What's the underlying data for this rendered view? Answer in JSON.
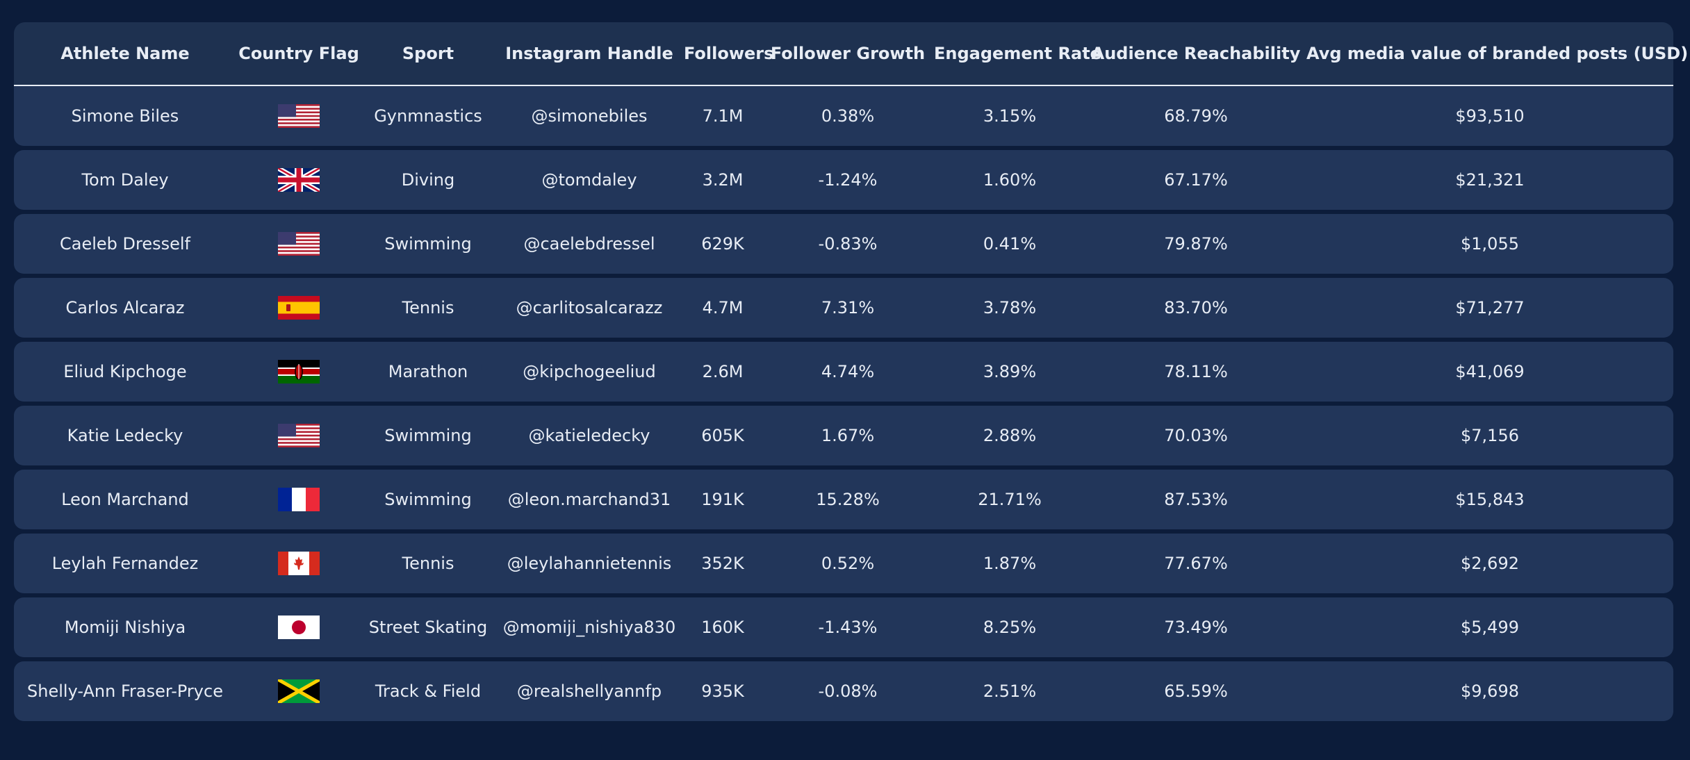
{
  "chart_data": {
    "type": "table",
    "columns": [
      "Athlete Name",
      "Country Flag",
      "Sport",
      "Instagram Handle",
      "Followers",
      "Follower Growth",
      "Engagement Rate",
      "Audience Reachability",
      "Avg media value of branded posts (USD)"
    ],
    "rows": [
      {
        "name": "Simone Biles",
        "flag": "us-flag-icon",
        "sport": "Gynmnastics",
        "handle": "@simonebiles",
        "followers": "7.1M",
        "growth": "0.38%",
        "engagement": "3.15%",
        "reach": "68.79%",
        "value": "$93,510"
      },
      {
        "name": "Tom Daley",
        "flag": "uk-flag-icon",
        "sport": "Diving",
        "handle": "@tomdaley",
        "followers": "3.2M",
        "growth": "-1.24%",
        "engagement": "1.60%",
        "reach": "67.17%",
        "value": "$21,321"
      },
      {
        "name": "Caeleb Dresself",
        "flag": "us-flag-icon",
        "sport": "Swimming",
        "handle": "@caelebdressel",
        "followers": "629K",
        "growth": "-0.83%",
        "engagement": "0.41%",
        "reach": "79.87%",
        "value": "$1,055"
      },
      {
        "name": "Carlos Alcaraz",
        "flag": "spain-flag-icon",
        "sport": "Tennis",
        "handle": "@carlitosalcarazz",
        "followers": "4.7M",
        "growth": "7.31%",
        "engagement": "3.78%",
        "reach": "83.70%",
        "value": "$71,277"
      },
      {
        "name": "Eliud Kipchoge",
        "flag": "kenya-flag-icon",
        "sport": "Marathon",
        "handle": "@kipchogeeliud",
        "followers": "2.6M",
        "growth": "4.74%",
        "engagement": "3.89%",
        "reach": "78.11%",
        "value": "$41,069"
      },
      {
        "name": "Katie Ledecky",
        "flag": "us-flag-icon",
        "sport": "Swimming",
        "handle": "@katieledecky",
        "followers": "605K",
        "growth": "1.67%",
        "engagement": "2.88%",
        "reach": "70.03%",
        "value": "$7,156"
      },
      {
        "name": "Leon Marchand",
        "flag": "france-flag-icon",
        "sport": "Swimming",
        "handle": "@leon.marchand31",
        "followers": "191K",
        "growth": "15.28%",
        "engagement": "21.71%",
        "reach": "87.53%",
        "value": "$15,843"
      },
      {
        "name": "Leylah Fernandez",
        "flag": "canada-flag-icon",
        "sport": "Tennis",
        "handle": "@leylahannietennis",
        "followers": "352K",
        "growth": "0.52%",
        "engagement": "1.87%",
        "reach": "77.67%",
        "value": "$2,692"
      },
      {
        "name": "Momiji Nishiya",
        "flag": "japan-flag-icon",
        "sport": "Street Skating",
        "handle": "@momiji_nishiya830",
        "followers": "160K",
        "growth": "-1.43%",
        "engagement": "8.25%",
        "reach": "73.49%",
        "value": "$5,499"
      },
      {
        "name": "Shelly-Ann Fraser-Pryce",
        "flag": "jamaica-flag-icon",
        "sport": "Track & Field",
        "handle": "@realshellyannfp",
        "followers": "935K",
        "growth": "-0.08%",
        "engagement": "2.51%",
        "reach": "65.59%",
        "value": "$9,698"
      }
    ]
  },
  "colors": {
    "background": "#0c1c3a",
    "header_bg": "#1e3150",
    "row_bg": "#22365a",
    "text": "#e8edf5"
  }
}
